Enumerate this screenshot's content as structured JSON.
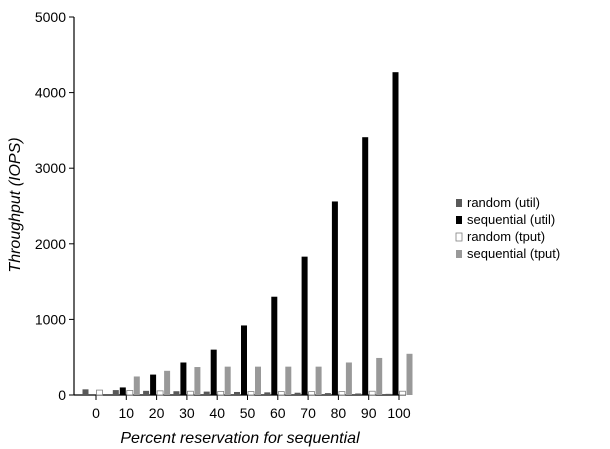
{
  "chart_data": {
    "type": "bar",
    "xlabel": "Percent reservation for sequential",
    "ylabel": "Throughput (IOPS)",
    "ylim": [
      0,
      5000
    ],
    "yticks": [
      0,
      1000,
      2000,
      3000,
      4000,
      5000
    ],
    "categories": [
      "0",
      "10",
      "20",
      "30",
      "40",
      "50",
      "60",
      "70",
      "80",
      "90",
      "100"
    ],
    "legend_position": "right",
    "grid": false,
    "series": [
      {
        "name": "random (util)",
        "color": "#595959",
        "fill": "#595959",
        "values": [
          75,
          65,
          55,
          50,
          45,
          40,
          35,
          30,
          25,
          20,
          15
        ]
      },
      {
        "name": "sequential (util)",
        "color": "#000000",
        "fill": "#000000",
        "values": [
          0,
          100,
          270,
          430,
          600,
          920,
          1300,
          1830,
          2560,
          3410,
          4270
        ]
      },
      {
        "name": "random (tput)",
        "color": "#808080",
        "fill": "#ffffff",
        "values": [
          65,
          60,
          55,
          50,
          48,
          45,
          45,
          45,
          45,
          50,
          50
        ]
      },
      {
        "name": "sequential (tput)",
        "color": "#999999",
        "fill": "#999999",
        "values": [
          0,
          245,
          320,
          370,
          375,
          375,
          375,
          375,
          430,
          490,
          545
        ]
      }
    ]
  }
}
